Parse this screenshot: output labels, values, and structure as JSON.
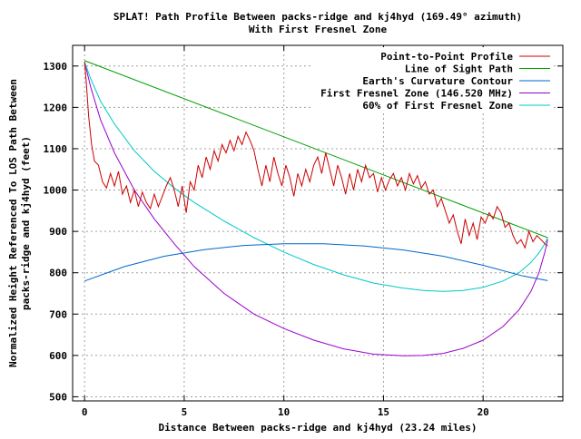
{
  "chart_data": {
    "type": "line",
    "title": "SPLAT! Path Profile Between packs-ridge and kj4hyd (169.49° azimuth)",
    "subtitle": "With First Fresnel Zone",
    "xlabel": "Distance Between packs-ridge and kj4hyd (23.24 miles)",
    "ylabel_line1": "Normalized Height Referenced To LOS Path Between",
    "ylabel_line2": "packs-ridge and kj4hyd (feet)",
    "xlim": [
      -0.6,
      24.0
    ],
    "ylim": [
      490,
      1350
    ],
    "x_ticks": [
      0,
      5,
      10,
      15,
      20
    ],
    "y_ticks": [
      500,
      600,
      700,
      800,
      900,
      1000,
      1100,
      1200,
      1300
    ],
    "grid": true,
    "legend_position": "top-right",
    "series": [
      {
        "name": "Point-to-Point Profile",
        "color": "#cc0000",
        "x": [
          0,
          0.1,
          0.2,
          0.35,
          0.5,
          0.7,
          0.9,
          1.1,
          1.3,
          1.5,
          1.7,
          1.9,
          2.1,
          2.3,
          2.5,
          2.7,
          2.9,
          3.1,
          3.3,
          3.5,
          3.7,
          3.9,
          4.1,
          4.3,
          4.5,
          4.7,
          4.9,
          5.1,
          5.3,
          5.5,
          5.7,
          5.9,
          6.1,
          6.3,
          6.5,
          6.7,
          6.9,
          7.1,
          7.3,
          7.5,
          7.7,
          7.9,
          8.1,
          8.3,
          8.5,
          8.7,
          8.9,
          9.1,
          9.3,
          9.5,
          9.7,
          9.9,
          10.1,
          10.3,
          10.5,
          10.7,
          10.9,
          11.1,
          11.3,
          11.5,
          11.7,
          11.9,
          12.1,
          12.3,
          12.5,
          12.7,
          12.9,
          13.1,
          13.3,
          13.5,
          13.7,
          13.9,
          14.1,
          14.3,
          14.5,
          14.7,
          14.9,
          15.1,
          15.3,
          15.5,
          15.7,
          15.9,
          16.1,
          16.3,
          16.5,
          16.7,
          16.9,
          17.1,
          17.3,
          17.5,
          17.7,
          17.9,
          18.1,
          18.3,
          18.5,
          18.7,
          18.9,
          19.1,
          19.3,
          19.5,
          19.7,
          19.9,
          20.1,
          20.3,
          20.5,
          20.7,
          20.9,
          21.1,
          21.3,
          21.5,
          21.7,
          21.9,
          22.1,
          22.3,
          22.5,
          22.7,
          22.9,
          23.1,
          23.24
        ],
        "y": [
          1310,
          1250,
          1180,
          1110,
          1070,
          1060,
          1020,
          1005,
          1040,
          1010,
          1045,
          990,
          1010,
          970,
          1000,
          960,
          995,
          970,
          955,
          990,
          960,
          985,
          1010,
          1030,
          1000,
          960,
          1010,
          945,
          1020,
          1000,
          1060,
          1030,
          1080,
          1050,
          1095,
          1070,
          1110,
          1090,
          1120,
          1095,
          1130,
          1110,
          1140,
          1120,
          1095,
          1050,
          1010,
          1060,
          1020,
          1080,
          1040,
          1010,
          1060,
          1030,
          985,
          1040,
          1010,
          1050,
          1020,
          1060,
          1080,
          1040,
          1090,
          1050,
          1010,
          1060,
          1030,
          990,
          1040,
          1000,
          1050,
          1020,
          1060,
          1030,
          1040,
          995,
          1030,
          1000,
          1025,
          1040,
          1010,
          1030,
          1000,
          1040,
          1015,
          1035,
          1005,
          1020,
          990,
          1000,
          960,
          980,
          950,
          920,
          940,
          900,
          870,
          930,
          890,
          920,
          880,
          935,
          920,
          945,
          930,
          960,
          945,
          910,
          920,
          890,
          870,
          880,
          860,
          900,
          875,
          890,
          880,
          870,
          865
        ]
      },
      {
        "name": "Line of Sight Path",
        "color": "#00a000",
        "x": [
          0,
          23.24
        ],
        "y": [
          1313,
          885
        ]
      },
      {
        "name": "Earth's Curvature Contour",
        "color": "#0066cc",
        "x": [
          0,
          2,
          4,
          6,
          8,
          10,
          12,
          14,
          16,
          18,
          20,
          22,
          23.24
        ],
        "y": [
          780,
          815,
          840,
          856,
          866,
          870,
          870,
          865,
          855,
          840,
          818,
          792,
          781
        ]
      },
      {
        "name": "First Fresnel Zone (146.520 MHz)",
        "color": "#9900cc",
        "x": [
          0,
          0.3,
          0.8,
          1.5,
          2.5,
          3.5,
          4.5,
          5.5,
          7,
          8.5,
          10,
          11.5,
          13,
          14.5,
          16,
          17,
          18,
          19,
          20,
          21,
          21.8,
          22.4,
          22.8,
          23.1,
          23.24
        ],
        "y": [
          1310,
          1250,
          1170,
          1090,
          1000,
          930,
          870,
          815,
          750,
          700,
          665,
          637,
          616,
          603,
          599,
          600,
          605,
          617,
          637,
          670,
          710,
          755,
          800,
          850,
          880
        ]
      },
      {
        "name": "60% of First Fresnel Zone",
        "color": "#00c8c8",
        "x": [
          0,
          0.3,
          0.8,
          1.5,
          2.5,
          3.5,
          4.5,
          5.5,
          7,
          8.5,
          10,
          11.5,
          13,
          14.5,
          16,
          17,
          18,
          19,
          20,
          21,
          21.8,
          22.4,
          22.8,
          23.1,
          23.24
        ],
        "y": [
          1310,
          1270,
          1215,
          1160,
          1095,
          1045,
          1005,
          970,
          925,
          885,
          850,
          820,
          795,
          775,
          763,
          757,
          755,
          757,
          765,
          780,
          800,
          825,
          848,
          870,
          885
        ]
      }
    ]
  }
}
